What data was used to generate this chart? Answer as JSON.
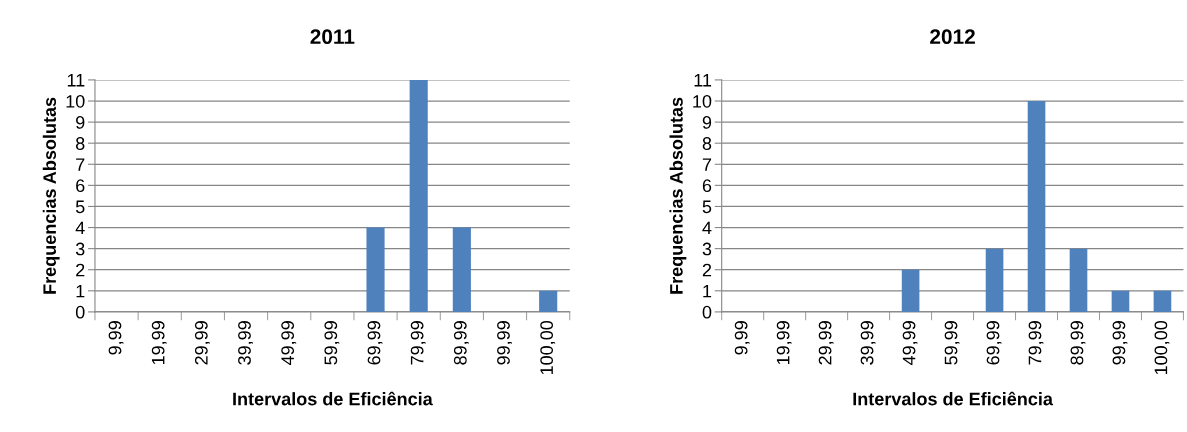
{
  "chart_data": [
    {
      "type": "bar",
      "title": "2011",
      "xlabel": "Intervalos de Eficiência",
      "ylabel": "Frequencias Absolutas",
      "categories": [
        "9,99",
        "19,99",
        "29,99",
        "39,99",
        "49,99",
        "59,99",
        "69,99",
        "79,99",
        "89,99",
        "99,99",
        "100,00"
      ],
      "values": [
        0,
        0,
        0,
        0,
        0,
        0,
        4,
        11,
        4,
        0,
        1
      ],
      "color": "#4f81bd",
      "ylim": [
        0,
        11
      ],
      "yticks": [
        0,
        1,
        2,
        3,
        4,
        5,
        6,
        7,
        8,
        9,
        10,
        11
      ],
      "grid": "y"
    },
    {
      "type": "bar",
      "title": "2012",
      "xlabel": "Intervalos de Eficiência",
      "ylabel": "Frequencias Absolutas",
      "categories": [
        "9,99",
        "19,99",
        "29,99",
        "39,99",
        "49,99",
        "59,99",
        "69,99",
        "79,99",
        "89,99",
        "99,99",
        "100,00"
      ],
      "values": [
        0,
        0,
        0,
        0,
        2,
        0,
        3,
        10,
        3,
        1,
        1
      ],
      "color": "#4f81bd",
      "ylim": [
        0,
        11
      ],
      "yticks": [
        0,
        1,
        2,
        3,
        4,
        5,
        6,
        7,
        8,
        9,
        10,
        11
      ],
      "grid": "y"
    }
  ]
}
